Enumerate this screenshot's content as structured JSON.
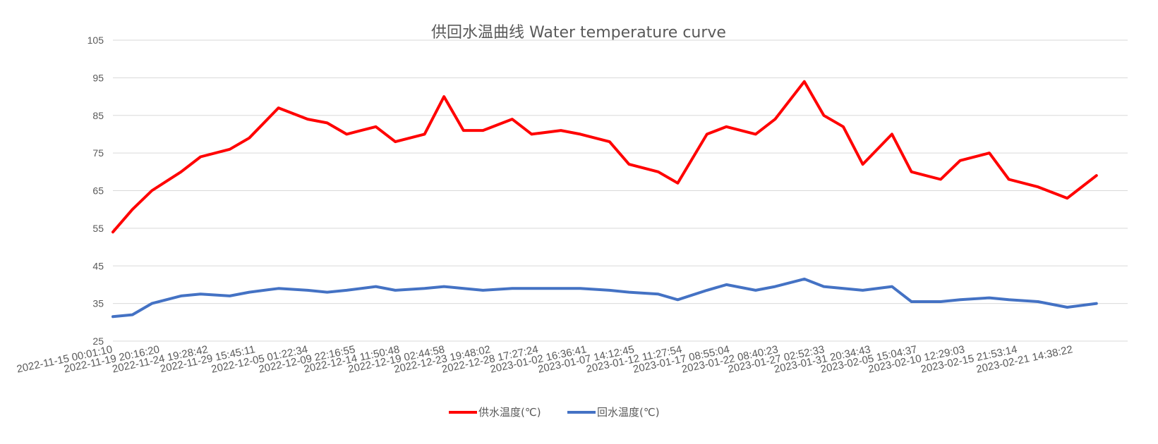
{
  "chart_data": {
    "type": "line",
    "title": "供回水温曲线 Water temperature curve",
    "xlabel": "",
    "ylabel": "",
    "ylim": [
      25,
      105
    ],
    "yticks": [
      25,
      35,
      45,
      55,
      65,
      75,
      85,
      95,
      105
    ],
    "grid": true,
    "legend_position": "bottom",
    "x_tick_labels": [
      "2022-11-15 00:01:10",
      "2022-11-19 20:16:20",
      "2022-11-24 19:28:42",
      "2022-11-29 15:45:11",
      "2022-12-05 01:22:34",
      "2022-12-09 22:16:55",
      "2022-12-14 11:50:48",
      "2022-12-19 02:44:58",
      "2022-12-23 19:48:02",
      "2022-12-28 17:27:24",
      "2023-01-02 16:36:41",
      "2023-01-07 14:12:45",
      "2023-01-12 11:27:54",
      "2023-01-17 08:55:04",
      "2023-01-22 08:40:23",
      "2023-01-27 02:52:33",
      "2023-01-31 20:34:43",
      "2023-02-05 15:04:37",
      "2023-02-10 12:29:03",
      "2023-02-15 21:53:14",
      "2023-02-21 14:38:22"
    ],
    "x": [
      "2022-11-15",
      "2022-11-17",
      "2022-11-19",
      "2022-11-22",
      "2022-11-24",
      "2022-11-27",
      "2022-11-29",
      "2022-12-02",
      "2022-12-05",
      "2022-12-07",
      "2022-12-09",
      "2022-12-12",
      "2022-12-14",
      "2022-12-17",
      "2022-12-19",
      "2022-12-21",
      "2022-12-23",
      "2022-12-26",
      "2022-12-28",
      "2022-12-31",
      "2023-01-02",
      "2023-01-05",
      "2023-01-07",
      "2023-01-10",
      "2023-01-12",
      "2023-01-15",
      "2023-01-17",
      "2023-01-20",
      "2023-01-22",
      "2023-01-25",
      "2023-01-27",
      "2023-01-29",
      "2023-01-31",
      "2023-02-03",
      "2023-02-05",
      "2023-02-08",
      "2023-02-10",
      "2023-02-13",
      "2023-02-15",
      "2023-02-18",
      "2023-02-21",
      "2023-02-24"
    ],
    "series": [
      {
        "name": "供水温度(℃)",
        "color": "#ff0000",
        "values": [
          54,
          60,
          65,
          70,
          74,
          76,
          79,
          87,
          84,
          83,
          80,
          82,
          78,
          80,
          90,
          81,
          81,
          84,
          80,
          81,
          80,
          78,
          72,
          70,
          67,
          80,
          82,
          80,
          84,
          94,
          85,
          82,
          72,
          80,
          70,
          68,
          73,
          75,
          68,
          66,
          63,
          69
        ]
      },
      {
        "name": "回水温度(℃)",
        "color": "#4472c4",
        "values": [
          31.5,
          32,
          35,
          37,
          37.5,
          37,
          38,
          39,
          38.5,
          38,
          38.5,
          39.5,
          38.5,
          39,
          39.5,
          39,
          38.5,
          39,
          39,
          39,
          39,
          38.5,
          38,
          37.5,
          36,
          38.5,
          40,
          38.5,
          39.5,
          41.5,
          39.5,
          39,
          38.5,
          39.5,
          35.5,
          35.5,
          36,
          36.5,
          36,
          35.5,
          34,
          35
        ]
      }
    ]
  }
}
